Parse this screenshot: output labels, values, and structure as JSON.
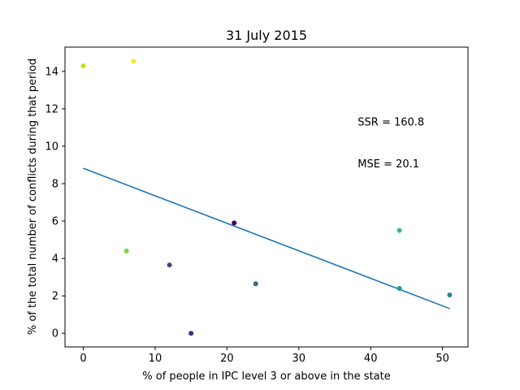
{
  "chart_data": {
    "type": "scatter",
    "title": "31 July 2015",
    "xlabel": "% of people in IPC level 3 or above in the state",
    "ylabel": "% of the total number of conflicts during that period",
    "xlim": [
      -2.55,
      53.55
    ],
    "ylim": [
      -0.73,
      15.3
    ],
    "xticks": [
      0,
      10,
      20,
      30,
      40,
      50
    ],
    "yticks": [
      0,
      2,
      4,
      6,
      8,
      10,
      12,
      14
    ],
    "grid": false,
    "points": [
      {
        "x": 0,
        "y": 14.3,
        "color": "#c8e020"
      },
      {
        "x": 7,
        "y": 14.55,
        "color": "#fde725"
      },
      {
        "x": 6,
        "y": 4.4,
        "color": "#7ad151"
      },
      {
        "x": 12,
        "y": 3.65,
        "color": "#414487"
      },
      {
        "x": 15,
        "y": 0.0,
        "color": "#472d7b"
      },
      {
        "x": 21,
        "y": 5.9,
        "color": "#440154"
      },
      {
        "x": 24,
        "y": 2.65,
        "color": "#31688e"
      },
      {
        "x": 44,
        "y": 5.5,
        "color": "#35b779"
      },
      {
        "x": 44,
        "y": 2.4,
        "color": "#1f9e89"
      },
      {
        "x": 51,
        "y": 2.05,
        "color": "#26828e"
      }
    ],
    "fit_line": {
      "x": [
        0,
        51
      ],
      "y": [
        8.82,
        1.32
      ],
      "color": "#1f77b4"
    },
    "annotations": [
      {
        "text": "SSR = 160.8",
        "x": 38.2,
        "y": 11.1
      },
      {
        "text": "MSE = 20.1",
        "x": 38.2,
        "y": 8.88
      }
    ]
  }
}
